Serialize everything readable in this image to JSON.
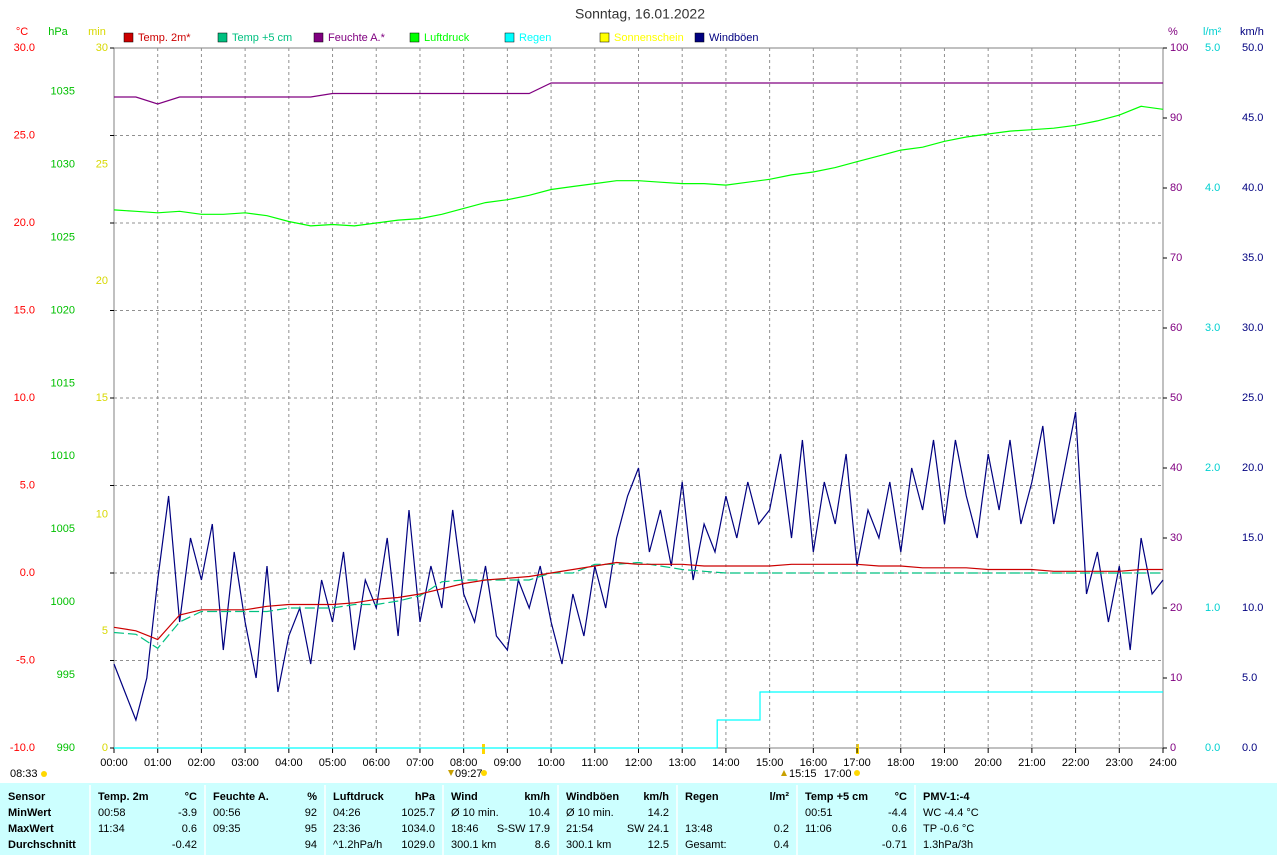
{
  "chart_data": {
    "type": "line",
    "title": "Sonntag, 16.01.2022",
    "grid": true,
    "xlim": [
      0,
      24
    ],
    "xticks": [
      {
        "value": 0,
        "label": "00:00"
      },
      {
        "value": 1,
        "label": "01:00"
      },
      {
        "value": 2,
        "label": "02:00"
      },
      {
        "value": 3,
        "label": "03:00"
      },
      {
        "value": 4,
        "label": "04:00"
      },
      {
        "value": 5,
        "label": "05:00"
      },
      {
        "value": 6,
        "label": "06:00"
      },
      {
        "value": 7,
        "label": "07:00"
      },
      {
        "value": 8,
        "label": "08:00"
      },
      {
        "value": 9,
        "label": "09:00"
      },
      {
        "value": 10,
        "label": "10:00"
      },
      {
        "value": 11,
        "label": "11:00"
      },
      {
        "value": 12,
        "label": "12:00"
      },
      {
        "value": 13,
        "label": "13:00"
      },
      {
        "value": 14,
        "label": "14:00"
      },
      {
        "value": 15,
        "label": "15:00"
      },
      {
        "value": 16,
        "label": "16:00"
      },
      {
        "value": 17,
        "label": "17:00"
      },
      {
        "value": 18,
        "label": "18:00"
      },
      {
        "value": 19,
        "label": "19:00"
      },
      {
        "value": 20,
        "label": "20:00"
      },
      {
        "value": 21,
        "label": "21:00"
      },
      {
        "value": 22,
        "label": "22:00"
      },
      {
        "value": 23,
        "label": "23:00"
      },
      {
        "value": 24,
        "label": "24:00"
      }
    ],
    "axes": [
      {
        "name": "°C",
        "color": "#ff0000",
        "side": "left",
        "lim": [
          -10,
          30
        ],
        "ticks": [
          {
            "value": -10,
            "label": "-10.0"
          },
          {
            "value": -5,
            "label": "-5.0"
          },
          {
            "value": 0,
            "label": "0.0"
          },
          {
            "value": 5,
            "label": "5.0"
          },
          {
            "value": 10,
            "label": "10.0"
          },
          {
            "value": 15,
            "label": "15.0"
          },
          {
            "value": 20,
            "label": "20.0"
          },
          {
            "value": 25,
            "label": "25.0"
          },
          {
            "value": 30,
            "label": "30.0"
          }
        ]
      },
      {
        "name": "hPa",
        "color": "#00c000",
        "side": "left",
        "lim": [
          990,
          1038
        ],
        "ticks": [
          990,
          995,
          1000,
          1005,
          1010,
          1015,
          1020,
          1025,
          1030,
          1035
        ]
      },
      {
        "name": "min",
        "color": "#d8d800",
        "side": "left",
        "lim": [
          0,
          30
        ],
        "ticks": [
          0,
          5,
          10,
          15,
          20,
          25,
          30
        ]
      },
      {
        "name": "%",
        "color": "#800080",
        "side": "right",
        "lim": [
          0,
          100
        ],
        "ticks": [
          0,
          10,
          20,
          30,
          40,
          50,
          60,
          70,
          80,
          90,
          100
        ]
      },
      {
        "name": "l/m²",
        "color": "#00d0d0",
        "side": "right",
        "lim": [
          0,
          5
        ],
        "ticks": [
          {
            "value": 0,
            "label": "0.0"
          },
          {
            "value": 1,
            "label": "1.0"
          },
          {
            "value": 2,
            "label": "2.0"
          },
          {
            "value": 3,
            "label": "3.0"
          },
          {
            "value": 4,
            "label": "4.0"
          },
          {
            "value": 5,
            "label": "5.0"
          }
        ]
      },
      {
        "name": "km/h",
        "color": "#000080",
        "side": "right",
        "lim": [
          0,
          50
        ],
        "ticks": [
          {
            "value": 0,
            "label": "0.0"
          },
          {
            "value": 5,
            "label": "5.0"
          },
          {
            "value": 10,
            "label": "10.0"
          },
          {
            "value": 15,
            "label": "15.0"
          },
          {
            "value": 20,
            "label": "20.0"
          },
          {
            "value": 25,
            "label": "25.0"
          },
          {
            "value": 30,
            "label": "30.0"
          },
          {
            "value": 35,
            "label": "35.0"
          },
          {
            "value": 40,
            "label": "40.0"
          },
          {
            "value": 45,
            "label": "45.0"
          },
          {
            "value": 50,
            "label": "50.0"
          }
        ]
      }
    ],
    "x": [
      0,
      0.5,
      1,
      1.5,
      2,
      2.5,
      3,
      3.5,
      4,
      4.5,
      5,
      5.5,
      6,
      6.5,
      7,
      7.5,
      8,
      8.5,
      9,
      9.5,
      10,
      10.5,
      11,
      11.5,
      12,
      12.5,
      13,
      13.5,
      14,
      14.5,
      15,
      15.5,
      16,
      16.5,
      17,
      17.5,
      18,
      18.5,
      19,
      19.5,
      20,
      20.5,
      21,
      21.5,
      22,
      22.5,
      23,
      23.5,
      24
    ],
    "series": [
      {
        "name": "Temp. 2m*",
        "color": "#cc0000",
        "axis": 0,
        "values": [
          -3.1,
          -3.3,
          -3.8,
          -2.4,
          -2.1,
          -2.1,
          -2.1,
          -1.9,
          -1.8,
          -1.8,
          -1.8,
          -1.7,
          -1.5,
          -1.4,
          -1.2,
          -0.9,
          -0.6,
          -0.4,
          -0.3,
          -0.2,
          0.0,
          0.2,
          0.4,
          0.6,
          0.5,
          0.5,
          0.5,
          0.4,
          0.4,
          0.4,
          0.4,
          0.5,
          0.5,
          0.5,
          0.5,
          0.4,
          0.4,
          0.3,
          0.3,
          0.3,
          0.2,
          0.2,
          0.2,
          0.1,
          0.1,
          0.1,
          0.1,
          0.2,
          0.2
        ]
      },
      {
        "name": "Temp +5 cm",
        "color": "#00c080",
        "axis": 0,
        "values": [
          -3.4,
          -3.5,
          -4.3,
          -2.8,
          -2.2,
          -2.2,
          -2.2,
          -2.2,
          -2.0,
          -2.0,
          -2.0,
          -1.8,
          -1.8,
          -1.6,
          -1.3,
          -0.5,
          -0.4,
          -0.4,
          -0.4,
          -0.4,
          0.0,
          0.0,
          0.5,
          0.5,
          0.6,
          0.4,
          0.2,
          0.1,
          0,
          0,
          0,
          0,
          0,
          0,
          0,
          0,
          0,
          0,
          0,
          0,
          0,
          0,
          0,
          0,
          0,
          0,
          0,
          0,
          0
        ]
      },
      {
        "name": "Feuchte A.*",
        "color": "#800080",
        "axis": 3,
        "values": [
          93,
          93,
          92,
          93,
          93,
          93,
          93,
          93,
          93,
          93,
          93.5,
          93.5,
          93.5,
          93.5,
          93.5,
          93.5,
          93.5,
          93.5,
          93.5,
          93.5,
          95,
          95,
          95,
          95,
          95,
          95,
          95,
          95,
          95,
          95,
          95,
          95,
          95,
          95,
          95,
          95,
          95,
          95,
          95,
          95,
          95,
          95,
          95,
          95,
          95,
          95,
          95,
          95,
          95
        ]
      },
      {
        "name": "Luftdruck",
        "color": "#00ff00",
        "axis": 1,
        "values": [
          1026.9,
          1026.8,
          1026.7,
          1026.8,
          1026.6,
          1026.6,
          1026.7,
          1026.5,
          1026.1,
          1025.8,
          1025.9,
          1025.8,
          1026.0,
          1026.2,
          1026.3,
          1026.6,
          1027.0,
          1027.4,
          1027.6,
          1027.9,
          1028.3,
          1028.5,
          1028.7,
          1028.9,
          1028.9,
          1028.8,
          1028.7,
          1028.7,
          1028.6,
          1028.8,
          1029.0,
          1029.3,
          1029.5,
          1029.8,
          1030.2,
          1030.6,
          1031.0,
          1031.2,
          1031.6,
          1031.9,
          1032.1,
          1032.3,
          1032.4,
          1032.5,
          1032.7,
          1033.0,
          1033.4,
          1034.0,
          1033.8
        ]
      },
      {
        "name": "Regen",
        "color": "#00ffff",
        "axis": 4,
        "x": [
          0,
          13.8,
          13.8,
          14.78,
          14.78,
          24
        ],
        "values": [
          0,
          0,
          0.2,
          0.2,
          0.4,
          0.4
        ]
      },
      {
        "name": "Sonnenschein",
        "color": "#ffff00",
        "axis": 2
      },
      {
        "name": "Windböen",
        "color": "#000080",
        "axis": 5,
        "x": [
          0,
          0.25,
          0.5,
          0.75,
          1,
          1.25,
          1.5,
          1.75,
          2,
          2.25,
          2.5,
          2.75,
          3,
          3.25,
          3.5,
          3.75,
          4,
          4.25,
          4.5,
          4.75,
          5,
          5.25,
          5.5,
          5.75,
          6,
          6.25,
          6.5,
          6.75,
          7,
          7.25,
          7.5,
          7.75,
          8,
          8.25,
          8.5,
          8.75,
          9,
          9.25,
          9.5,
          9.75,
          10,
          10.25,
          10.5,
          10.75,
          11,
          11.25,
          11.5,
          11.75,
          12,
          12.25,
          12.5,
          12.75,
          13,
          13.25,
          13.5,
          13.75,
          14,
          14.25,
          14.5,
          14.75,
          15,
          15.25,
          15.5,
          15.75,
          16,
          16.25,
          16.5,
          16.75,
          17,
          17.25,
          17.5,
          17.75,
          18,
          18.25,
          18.5,
          18.75,
          19,
          19.25,
          19.5,
          19.75,
          20,
          20.25,
          20.5,
          20.75,
          21,
          21.25,
          21.5,
          21.75,
          22,
          22.25,
          22.5,
          22.75,
          23,
          23.25,
          23.5,
          23.75,
          24
        ],
        "values": [
          6,
          4,
          2,
          5,
          12,
          18,
          9,
          15,
          12,
          16,
          7,
          14,
          9,
          5,
          13,
          4,
          8,
          10,
          6,
          12,
          9,
          14,
          7,
          12,
          10,
          15,
          8,
          17,
          9,
          13,
          10,
          17,
          11,
          9,
          13,
          8,
          7,
          12,
          10,
          13,
          9,
          6,
          11,
          8,
          13,
          10,
          15,
          18,
          20,
          14,
          17,
          13,
          19,
          12,
          16,
          14,
          18,
          15,
          19,
          16,
          17,
          21,
          15,
          22,
          14,
          19,
          16,
          21,
          13,
          17,
          15,
          19,
          14,
          20,
          17,
          22,
          16,
          22,
          18,
          15,
          21,
          17,
          22,
          16,
          19,
          23,
          16,
          20,
          24,
          11,
          14,
          9,
          13,
          7,
          15,
          11,
          12
        ]
      }
    ],
    "annotations": [
      "08:33",
      "09:27",
      "15:15",
      "17:00"
    ]
  },
  "table": {
    "rows": [
      [
        {
          "l": "Sensor"
        },
        {
          "l": "Temp. 2m",
          "r": "°C"
        },
        {
          "l": "Feuchte A.",
          "r": "%"
        },
        {
          "l": "Luftdruck",
          "r": "hPa"
        },
        {
          "l": "Wind",
          "r": "km/h"
        },
        {
          "l": "Windböen",
          "r": "km/h"
        },
        {
          "l": "Regen",
          "r": "l/m²"
        },
        {
          "l": "Temp +5 cm",
          "r": "°C"
        },
        {
          "l": "PMV-1:-4"
        }
      ],
      [
        {
          "l": "MinWert"
        },
        {
          "l": "00:58",
          "r": "-3.9"
        },
        {
          "l": "00:56",
          "r": "92"
        },
        {
          "l": "04:26",
          "r": "1025.7"
        },
        {
          "l": "Ø 10 min.",
          "r": "10.4"
        },
        {
          "l": "Ø 10 min.",
          "r": "14.2"
        },
        null,
        {
          "l": "00:51",
          "r": "-4.4"
        },
        {
          "l": "WC -4.4 °C"
        }
      ],
      [
        {
          "l": "MaxWert"
        },
        {
          "l": "11:34",
          "r": "0.6"
        },
        {
          "l": "09:35",
          "r": "95"
        },
        {
          "l": "23:36",
          "r": "1034.0"
        },
        {
          "l": "18:46",
          "r": "S-SW 17.9"
        },
        {
          "l": "21:54",
          "r": "SW 24.1"
        },
        {
          "l": "13:48",
          "r": "0.2"
        },
        {
          "l": "11:06",
          "r": "0.6"
        },
        {
          "l": "TP -0.6 °C"
        }
      ],
      [
        {
          "l": "Durchschnitt"
        },
        {
          "r": "-0.42"
        },
        {
          "r": "94"
        },
        {
          "l": "^1.2hPa/h",
          "r": "1029.0"
        },
        {
          "l": "300.1 km",
          "r": "8.6"
        },
        {
          "l": "300.1 km",
          "r": "12.5"
        },
        {
          "l": "Gesamt:",
          "r": "0.4"
        },
        {
          "r": "-0.71"
        },
        {
          "l": "1.3hPa/3h"
        }
      ]
    ]
  }
}
